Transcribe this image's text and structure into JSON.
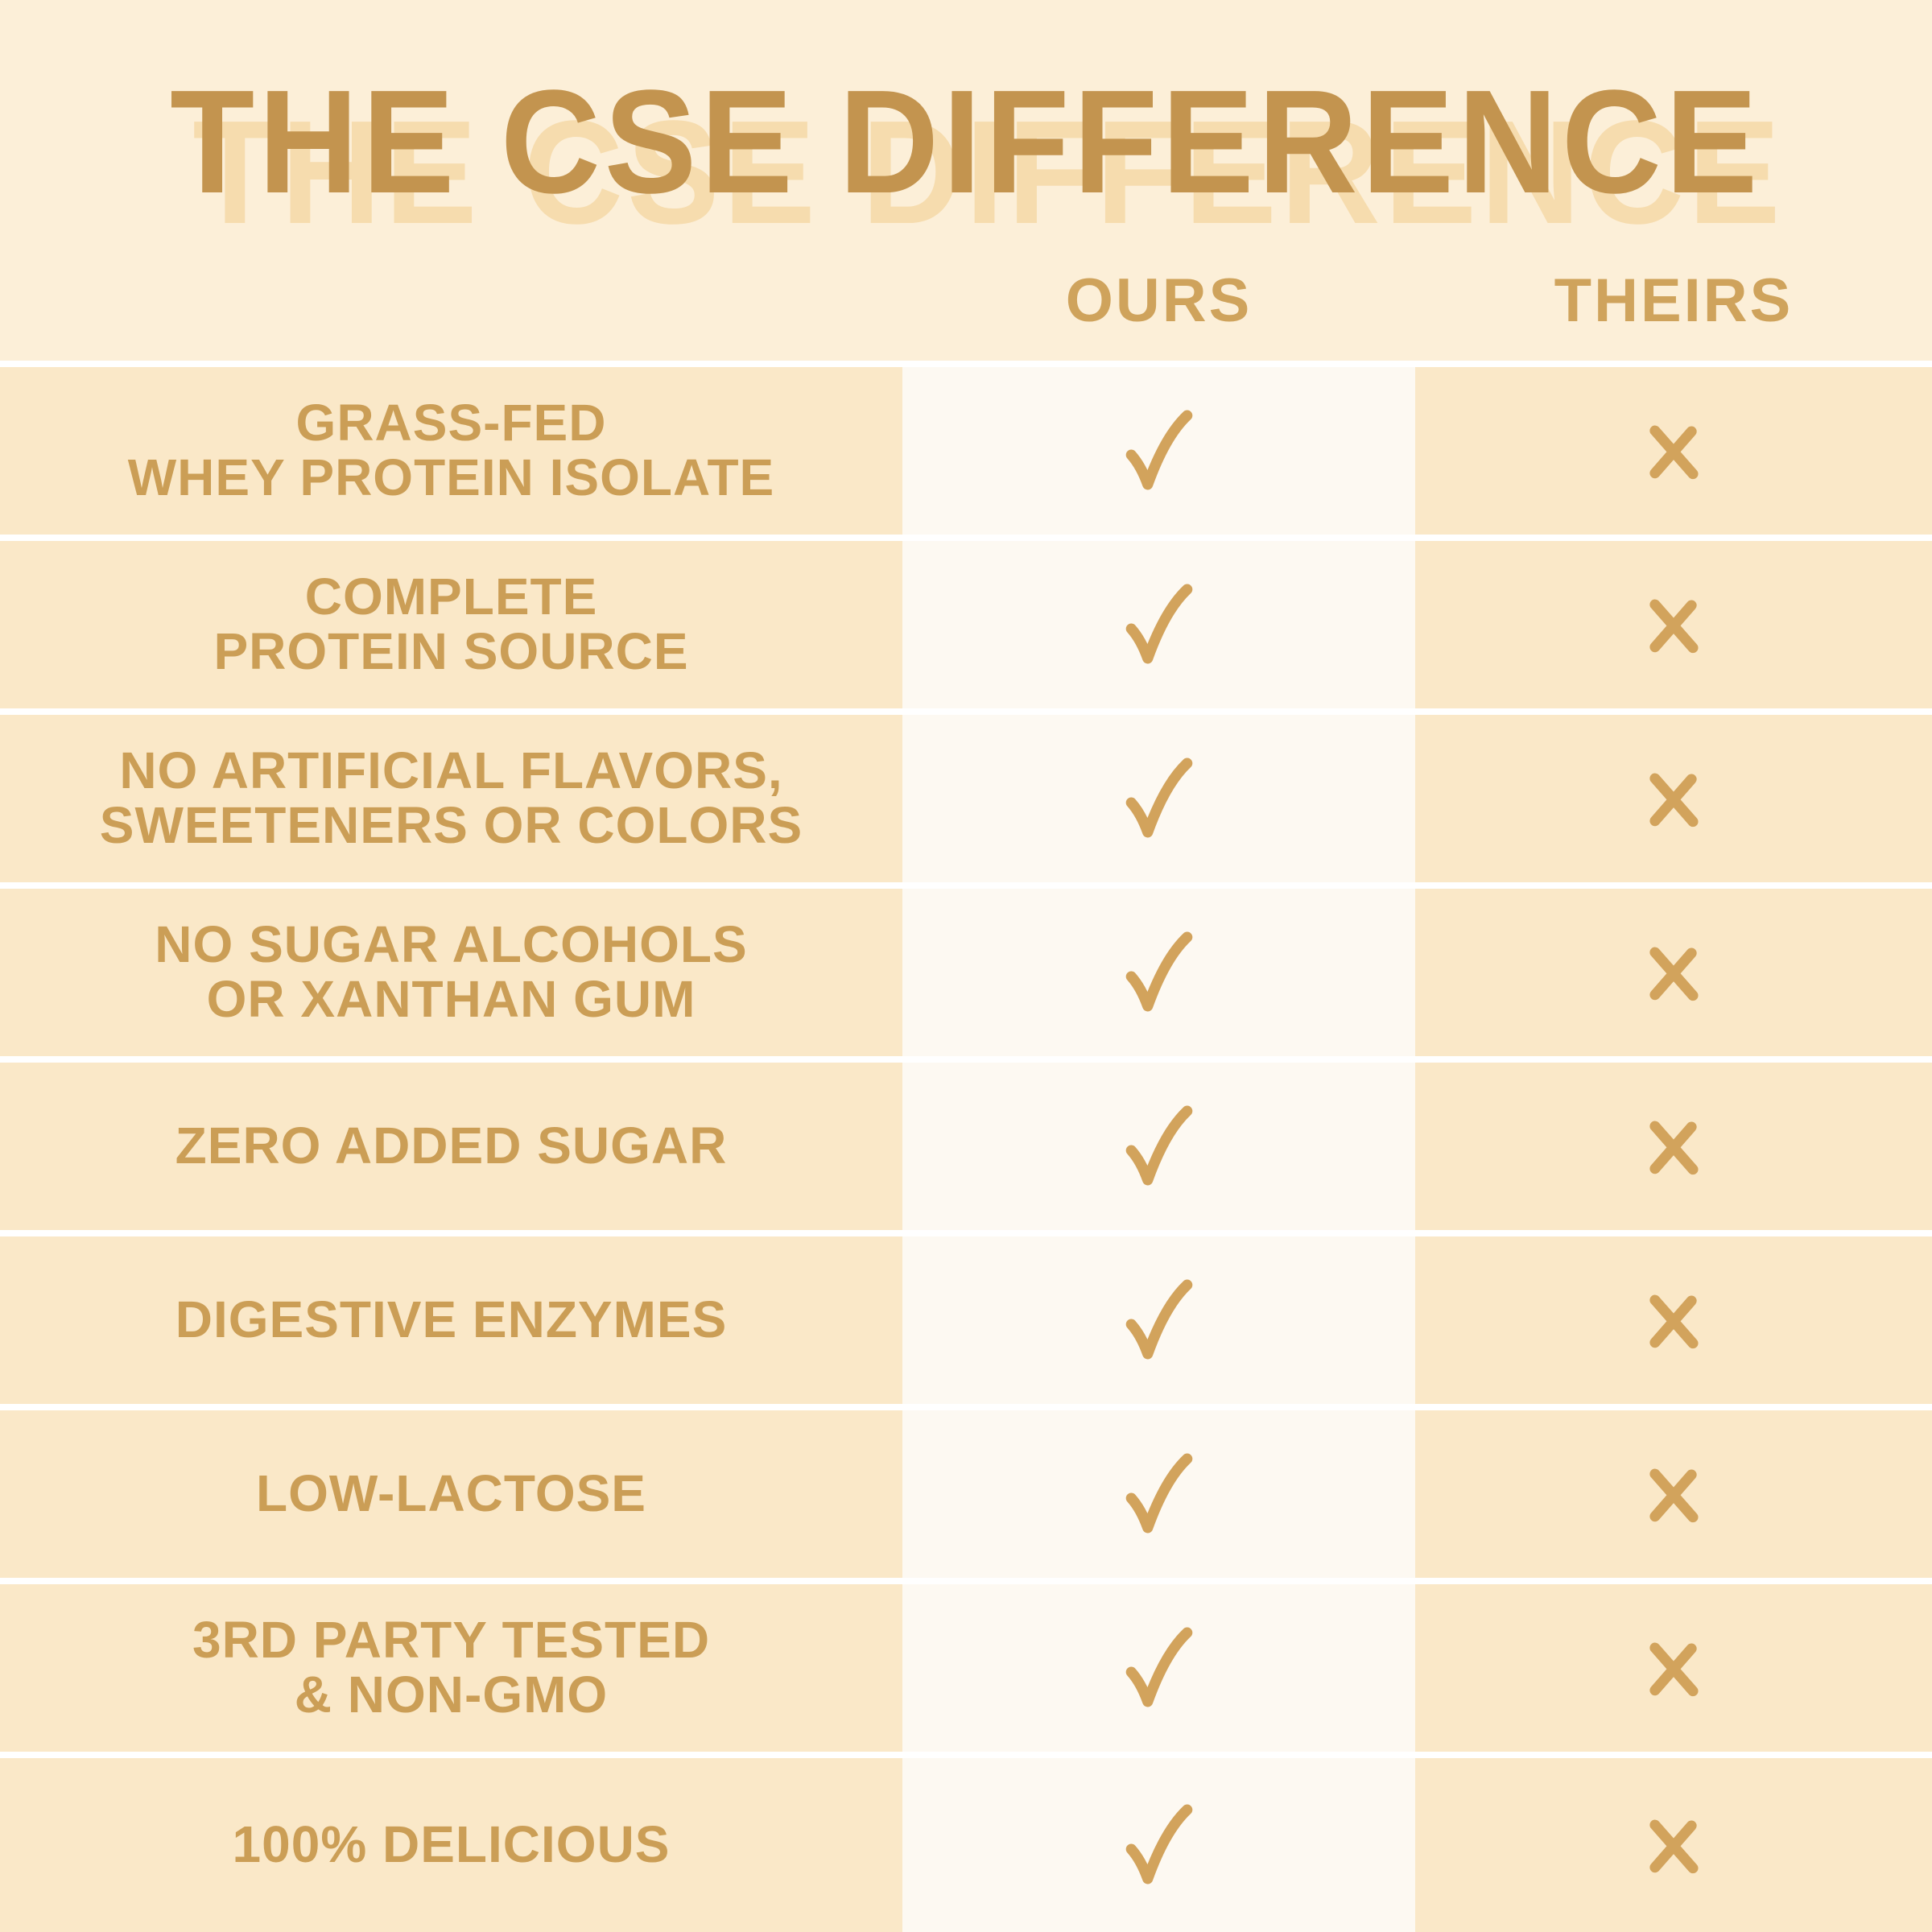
{
  "title": "THE CSE DIFFERENCE",
  "columns": {
    "ours": "OURS",
    "theirs": "THEIRS"
  },
  "table": {
    "rows": [
      {
        "label_lines": [
          "GRASS-FED",
          "WHEY PROTEIN ISOLATE"
        ],
        "ours": "check",
        "theirs": "cross"
      },
      {
        "label_lines": [
          "COMPLETE",
          "PROTEIN SOURCE"
        ],
        "ours": "check",
        "theirs": "cross"
      },
      {
        "label_lines": [
          "NO ARTIFICIAL FLAVORS,",
          "SWEETENERS OR COLORS"
        ],
        "ours": "check",
        "theirs": "cross"
      },
      {
        "label_lines": [
          "NO SUGAR ALCOHOLS",
          "OR XANTHAN GUM"
        ],
        "ours": "check",
        "theirs": "cross"
      },
      {
        "label_lines": [
          "ZERO ADDED SUGAR"
        ],
        "ours": "check",
        "theirs": "cross"
      },
      {
        "label_lines": [
          "DIGESTIVE ENZYMES"
        ],
        "ours": "check",
        "theirs": "cross"
      },
      {
        "label_lines": [
          "LOW-LACTOSE"
        ],
        "ours": "check",
        "theirs": "cross"
      },
      {
        "label_lines": [
          "3RD PARTY TESTED",
          "& NON-GMO"
        ],
        "ours": "check",
        "theirs": "cross"
      },
      {
        "label_lines": [
          "100% DELICIOUS"
        ],
        "ours": "check",
        "theirs": "cross"
      }
    ]
  },
  "chart_data": {
    "type": "table",
    "title": "THE CSE DIFFERENCE",
    "columns": [
      "OURS",
      "THEIRS"
    ],
    "rows": [
      {
        "feature": "GRASS-FED WHEY PROTEIN ISOLATE",
        "OURS": true,
        "THEIRS": false
      },
      {
        "feature": "COMPLETE PROTEIN SOURCE",
        "OURS": true,
        "THEIRS": false
      },
      {
        "feature": "NO ARTIFICIAL FLAVORS, SWEETENERS OR COLORS",
        "OURS": true,
        "THEIRS": false
      },
      {
        "feature": "NO SUGAR ALCOHOLS OR XANTHAN GUM",
        "OURS": true,
        "THEIRS": false
      },
      {
        "feature": "ZERO ADDED SUGAR",
        "OURS": true,
        "THEIRS": false
      },
      {
        "feature": "DIGESTIVE ENZYMES",
        "OURS": true,
        "THEIRS": false
      },
      {
        "feature": "LOW-LACTOSE",
        "OURS": true,
        "THEIRS": false
      },
      {
        "feature": "3RD PARTY TESTED & NON-GMO",
        "OURS": true,
        "THEIRS": false
      },
      {
        "feature": "100% DELICIOUS",
        "OURS": true,
        "THEIRS": false
      }
    ]
  },
  "colors": {
    "page_background": "#fcefd8",
    "row_background": "#fae8c8",
    "ours_column_background": "#fdf9f2",
    "row_separator": "#ffffff",
    "column_header_text": "#cfa35c",
    "label_text": "#cb9e56",
    "title_text": "#c3944f",
    "title_shadow": "#f6dcae",
    "mark_color": "#d2a35c"
  }
}
